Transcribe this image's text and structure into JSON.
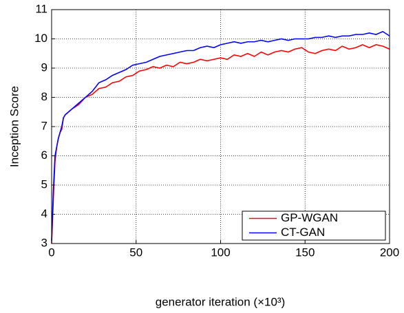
{
  "chart_data": {
    "type": "line",
    "xlabel": "generator iteration (×10³)",
    "ylabel": "Inception Score",
    "x": [
      0,
      1,
      2,
      3,
      4,
      5,
      6,
      7,
      8,
      12,
      16,
      20,
      24,
      28,
      32,
      36,
      40,
      44,
      48,
      52,
      56,
      60,
      64,
      68,
      72,
      76,
      80,
      84,
      88,
      92,
      96,
      100,
      104,
      108,
      112,
      116,
      120,
      124,
      128,
      132,
      136,
      140,
      144,
      148,
      152,
      156,
      160,
      164,
      168,
      172,
      176,
      180,
      184,
      188,
      192,
      196,
      200
    ],
    "series": [
      {
        "name": "GP-WGAN",
        "color": "#ff0000",
        "values": [
          3.0,
          4.5,
          5.8,
          6.3,
          6.6,
          6.8,
          6.9,
          7.3,
          7.4,
          7.6,
          7.75,
          8.0,
          8.1,
          8.3,
          8.35,
          8.5,
          8.55,
          8.7,
          8.75,
          8.9,
          8.95,
          9.05,
          9.0,
          9.1,
          9.05,
          9.2,
          9.15,
          9.2,
          9.3,
          9.25,
          9.3,
          9.35,
          9.3,
          9.45,
          9.4,
          9.5,
          9.4,
          9.55,
          9.45,
          9.55,
          9.6,
          9.55,
          9.65,
          9.7,
          9.55,
          9.5,
          9.6,
          9.65,
          9.6,
          9.75,
          9.65,
          9.7,
          9.8,
          9.7,
          9.8,
          9.75,
          9.65
        ]
      },
      {
        "name": "CT-GAN",
        "color": "#0000ff",
        "values": [
          3.1,
          4.8,
          6.0,
          6.3,
          6.6,
          6.8,
          7.0,
          7.3,
          7.4,
          7.6,
          7.8,
          8.0,
          8.2,
          8.5,
          8.6,
          8.75,
          8.85,
          8.95,
          9.1,
          9.15,
          9.2,
          9.3,
          9.4,
          9.45,
          9.5,
          9.55,
          9.6,
          9.6,
          9.7,
          9.75,
          9.7,
          9.8,
          9.85,
          9.9,
          9.85,
          9.9,
          9.9,
          9.95,
          9.9,
          9.95,
          10.0,
          9.95,
          10.0,
          10.0,
          10.0,
          10.05,
          10.05,
          10.1,
          10.05,
          10.1,
          10.1,
          10.15,
          10.15,
          10.2,
          10.15,
          10.25,
          10.1
        ]
      }
    ],
    "xlim": [
      0,
      200
    ],
    "xticks": [
      0,
      50,
      100,
      150,
      200
    ],
    "ylim": [
      3,
      11
    ],
    "yticks": [
      3,
      4,
      5,
      6,
      7,
      8,
      9,
      10,
      11
    ],
    "grid": true,
    "legend": "lower right"
  }
}
